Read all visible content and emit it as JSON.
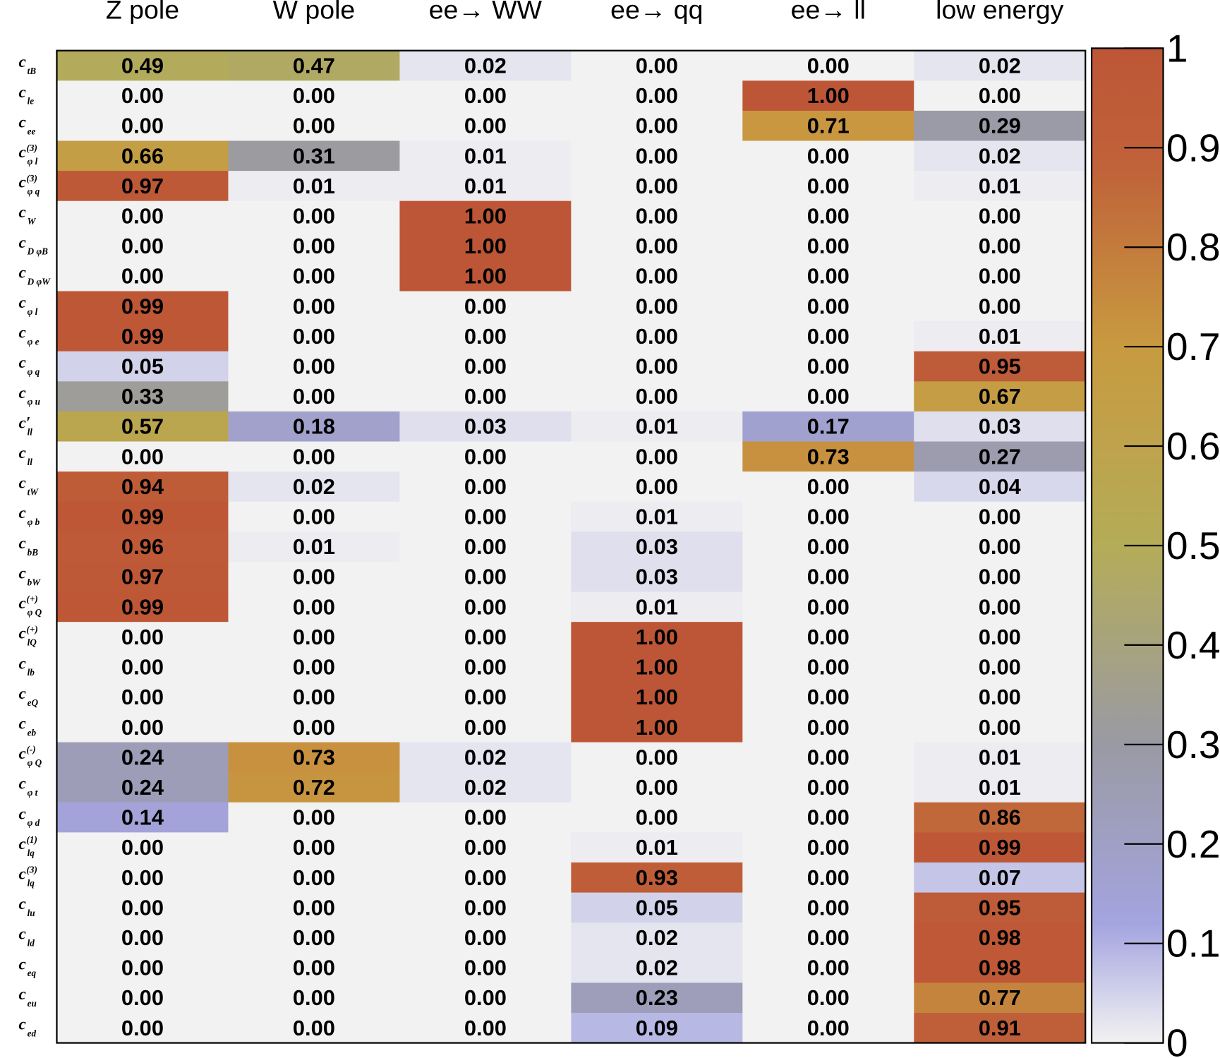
{
  "chart_data": {
    "type": "heatmap",
    "columns": [
      "Z pole",
      "W pole",
      "ee→ WW",
      "ee→ qq",
      "ee→ ll",
      "low energy"
    ],
    "rows": [
      {
        "base": "c",
        "sub": "tB"
      },
      {
        "base": "c",
        "sub": "le"
      },
      {
        "base": "c",
        "sub": "ee"
      },
      {
        "base": "c",
        "sup": "(3)",
        "sub": "φ l"
      },
      {
        "base": "c",
        "sup": "(3)",
        "sub": "φ q"
      },
      {
        "base": "c",
        "sub": "W"
      },
      {
        "base": "c",
        "sub": "D φB"
      },
      {
        "base": "c",
        "sub": "D φW"
      },
      {
        "base": "c",
        "sub": "φ l"
      },
      {
        "base": "c",
        "sub": "φ e"
      },
      {
        "base": "c",
        "sub": "φ q"
      },
      {
        "base": "c",
        "sub": "φ u"
      },
      {
        "base": "c′",
        "sub": "ll"
      },
      {
        "base": "c",
        "sub": "ll"
      },
      {
        "base": "c",
        "sub": "tW"
      },
      {
        "base": "c",
        "sub": "φ b"
      },
      {
        "base": "c",
        "sub": "bB"
      },
      {
        "base": "c",
        "sub": "bW"
      },
      {
        "base": "c",
        "sup": "(+)",
        "sub": "φ Q"
      },
      {
        "base": "c",
        "sup": "(+)",
        "sub": "lQ"
      },
      {
        "base": "c",
        "sub": "lb"
      },
      {
        "base": "c",
        "sub": "eQ"
      },
      {
        "base": "c",
        "sub": "eb"
      },
      {
        "base": "c",
        "sup": "(-)",
        "sub": "φ Q"
      },
      {
        "base": "c",
        "sub": "φ t"
      },
      {
        "base": "c",
        "sub": "φ d"
      },
      {
        "base": "c",
        "sup": "(1)",
        "sub": "lq"
      },
      {
        "base": "c",
        "sup": "(3)",
        "sub": "lq"
      },
      {
        "base": "c",
        "sub": "lu"
      },
      {
        "base": "c",
        "sub": "ld"
      },
      {
        "base": "c",
        "sub": "eq"
      },
      {
        "base": "c",
        "sub": "eu"
      },
      {
        "base": "c",
        "sub": "ed"
      }
    ],
    "values": [
      [
        0.49,
        0.47,
        0.02,
        0,
        0,
        0.02
      ],
      [
        0,
        0,
        0,
        0,
        1,
        0
      ],
      [
        0,
        0,
        0,
        0,
        0.71,
        0.29
      ],
      [
        0.66,
        0.31,
        0.01,
        0,
        0,
        0.02
      ],
      [
        0.97,
        0.01,
        0.01,
        0,
        0,
        0.01
      ],
      [
        0,
        0,
        1,
        0,
        0,
        0
      ],
      [
        0,
        0,
        1,
        0,
        0,
        0
      ],
      [
        0,
        0,
        1,
        0,
        0,
        0
      ],
      [
        0.99,
        0,
        0,
        0,
        0,
        0
      ],
      [
        0.99,
        0,
        0,
        0,
        0,
        0.01
      ],
      [
        0.05,
        0,
        0,
        0,
        0,
        0.95
      ],
      [
        0.33,
        0,
        0,
        0,
        0,
        0.67
      ],
      [
        0.57,
        0.18,
        0.03,
        0.01,
        0.17,
        0.03
      ],
      [
        0,
        0,
        0,
        0,
        0.73,
        0.27
      ],
      [
        0.94,
        0.02,
        0,
        0,
        0,
        0.04
      ],
      [
        0.99,
        0,
        0,
        0.01,
        0,
        0
      ],
      [
        0.96,
        0.01,
        0,
        0.03,
        0,
        0
      ],
      [
        0.97,
        0,
        0,
        0.03,
        0,
        0
      ],
      [
        0.99,
        0,
        0,
        0.01,
        0,
        0
      ],
      [
        0,
        0,
        0,
        1,
        0,
        0
      ],
      [
        0,
        0,
        0,
        1,
        0,
        0
      ],
      [
        0,
        0,
        0,
        1,
        0,
        0
      ],
      [
        0,
        0,
        0,
        1,
        0,
        0
      ],
      [
        0.24,
        0.73,
        0.02,
        0,
        0,
        0.01
      ],
      [
        0.24,
        0.72,
        0.02,
        0,
        0,
        0.01
      ],
      [
        0.14,
        0,
        0,
        0,
        0,
        0.86
      ],
      [
        0,
        0,
        0,
        0.01,
        0,
        0.99
      ],
      [
        0,
        0,
        0,
        0.93,
        0,
        0.07
      ],
      [
        0,
        0,
        0,
        0.05,
        0,
        0.95
      ],
      [
        0,
        0,
        0,
        0.02,
        0,
        0.98
      ],
      [
        0,
        0,
        0,
        0.02,
        0,
        0.98
      ],
      [
        0,
        0,
        0,
        0.23,
        0,
        0.77
      ],
      [
        0,
        0,
        0,
        0.09,
        0,
        0.91
      ]
    ],
    "value_labels": [
      [
        "0.49",
        "0.47",
        "0.02",
        "0.00",
        "0.00",
        "0.02"
      ],
      [
        "0.00",
        "0.00",
        "0.00",
        "0.00",
        "1.00",
        "0.00"
      ],
      [
        "0.00",
        "0.00",
        "0.00",
        "0.00",
        "0.71",
        "0.29"
      ],
      [
        "0.66",
        "0.31",
        "0.01",
        "0.00",
        "0.00",
        "0.02"
      ],
      [
        "0.97",
        "0.01",
        "0.01",
        "0.00",
        "0.00",
        "0.01"
      ],
      [
        "0.00",
        "0.00",
        "1.00",
        "0.00",
        "0.00",
        "0.00"
      ],
      [
        "0.00",
        "0.00",
        "1.00",
        "0.00",
        "0.00",
        "0.00"
      ],
      [
        "0.00",
        "0.00",
        "1.00",
        "0.00",
        "0.00",
        "0.00"
      ],
      [
        "0.99",
        "0.00",
        "0.00",
        "0.00",
        "0.00",
        "0.00"
      ],
      [
        "0.99",
        "0.00",
        "0.00",
        "0.00",
        "0.00",
        "0.01"
      ],
      [
        "0.05",
        "0.00",
        "0.00",
        "0.00",
        "0.00",
        "0.95"
      ],
      [
        "0.33",
        "0.00",
        "0.00",
        "0.00",
        "0.00",
        "0.67"
      ],
      [
        "0.57",
        "0.18",
        "0.03",
        "0.01",
        "0.17",
        "0.03"
      ],
      [
        "0.00",
        "0.00",
        "0.00",
        "0.00",
        "0.73",
        "0.27"
      ],
      [
        "0.94",
        "0.02",
        "0.00",
        "0.00",
        "0.00",
        "0.04"
      ],
      [
        "0.99",
        "0.00",
        "0.00",
        "0.01",
        "0.00",
        "0.00"
      ],
      [
        "0.96",
        "0.01",
        "0.00",
        "0.03",
        "0.00",
        "0.00"
      ],
      [
        "0.97",
        "0.00",
        "0.00",
        "0.03",
        "0.00",
        "0.00"
      ],
      [
        "0.99",
        "0.00",
        "0.00",
        "0.01",
        "0.00",
        "0.00"
      ],
      [
        "0.00",
        "0.00",
        "0.00",
        "1.00",
        "0.00",
        "0.00"
      ],
      [
        "0.00",
        "0.00",
        "0.00",
        "1.00",
        "0.00",
        "0.00"
      ],
      [
        "0.00",
        "0.00",
        "0.00",
        "1.00",
        "0.00",
        "0.00"
      ],
      [
        "0.00",
        "0.00",
        "0.00",
        "1.00",
        "0.00",
        "0.00"
      ],
      [
        "0.24",
        "0.73",
        "0.02",
        "0.00",
        "0.00",
        "0.01"
      ],
      [
        "0.24",
        "0.72",
        "0.02",
        "0.00",
        "0.00",
        "0.01"
      ],
      [
        "0.14",
        "0.00",
        "0.00",
        "0.00",
        "0.00",
        "0.86"
      ],
      [
        "0.00",
        "0.00",
        "0.00",
        "0.01",
        "0.00",
        "0.99"
      ],
      [
        "0.00",
        "0.00",
        "0.00",
        "0.93",
        "0.00",
        "0.07"
      ],
      [
        "0.00",
        "0.00",
        "0.00",
        "0.05",
        "0.00",
        "0.95"
      ],
      [
        "0.00",
        "0.00",
        "0.00",
        "0.02",
        "0.00",
        "0.98"
      ],
      [
        "0.00",
        "0.00",
        "0.00",
        "0.02",
        "0.00",
        "0.98"
      ],
      [
        "0.00",
        "0.00",
        "0.00",
        "0.23",
        "0.00",
        "0.77"
      ],
      [
        "0.00",
        "0.00",
        "0.00",
        "0.09",
        "0.00",
        "0.91"
      ]
    ],
    "zlim": [
      0,
      1
    ],
    "zticks": [
      0,
      0.1,
      0.2,
      0.3,
      0.4,
      0.5,
      0.6,
      0.7,
      0.8,
      0.9,
      1
    ],
    "colorscale": [
      [
        0,
        "#f2f2f2"
      ],
      [
        0.12,
        "#a4a4e0"
      ],
      [
        0.3,
        "#9a9aa4"
      ],
      [
        0.5,
        "#b4ac58"
      ],
      [
        0.7,
        "#c89a40"
      ],
      [
        0.88,
        "#c0623a"
      ],
      [
        1,
        "#bd5636"
      ]
    ]
  }
}
